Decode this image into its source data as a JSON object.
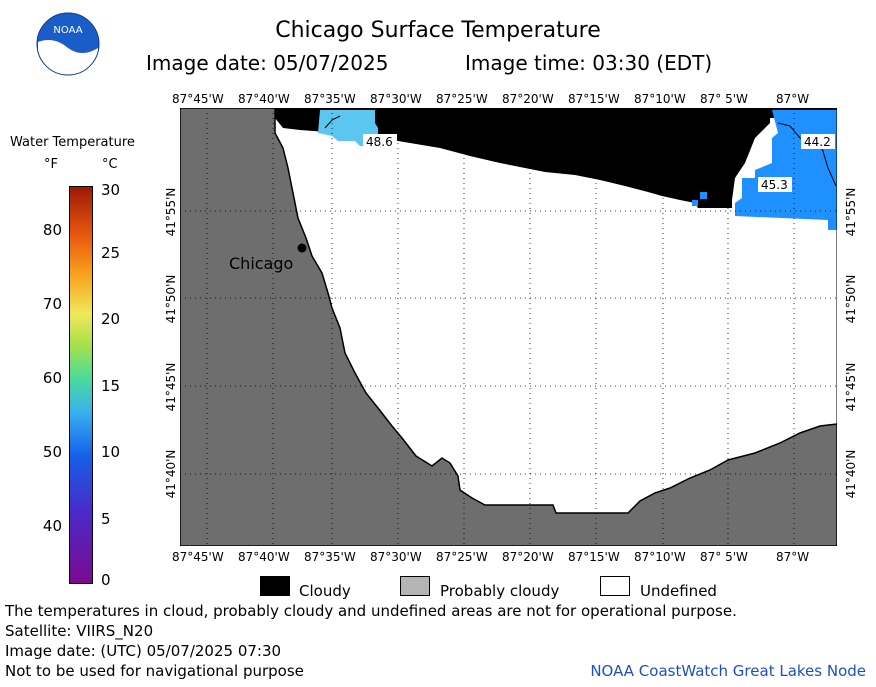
{
  "header": {
    "title": "Chicago Surface Temperature",
    "image_date": "Image date: 05/07/2025",
    "image_time": "Image time: 03:30 (EDT)"
  },
  "logo": {
    "text": "NOAA",
    "icon": "noaa-logo-icon"
  },
  "legend": {
    "title": "Water Temperature",
    "unit_f": "°F",
    "unit_c": "°C",
    "f_ticks": [
      "80",
      "70",
      "60",
      "50",
      "40"
    ],
    "c_ticks": [
      "30",
      "25",
      "20",
      "15",
      "10",
      "5",
      "0"
    ]
  },
  "map": {
    "lon_labels": [
      "87°45'W",
      "87°40'W",
      "87°35'W",
      "87°30'W",
      "87°25'W",
      "87°20'W",
      "87°15'W",
      "87°10'W",
      "87° 5'W",
      "87°W"
    ],
    "lat_labels": [
      "41°55'N",
      "41°50'N",
      "41°45'N",
      "41°40'N"
    ],
    "city": "Chicago",
    "temp_labels": [
      "48.6",
      "44.2",
      "45.3"
    ],
    "colors": {
      "land": "#6e6e6e",
      "cloud": "#000000",
      "water_warm": "#5bc6f0",
      "water_cool": "#1e90ff",
      "undefined": "#ffffff"
    }
  },
  "key": {
    "cloudy": "Cloudy",
    "probably_cloudy": "Probably cloudy",
    "undefined": "Undefined"
  },
  "footer": {
    "line1": "The temperatures in cloud, probably cloudy and undefined areas are not for operational purpose.",
    "line2": "Satellite: VIIRS_N20",
    "line3": "Image date: (UTC) 05/07/2025  07:30",
    "line4": "Not to be used for navigational purpose",
    "credit": "NOAA CoastWatch Great Lakes Node"
  }
}
